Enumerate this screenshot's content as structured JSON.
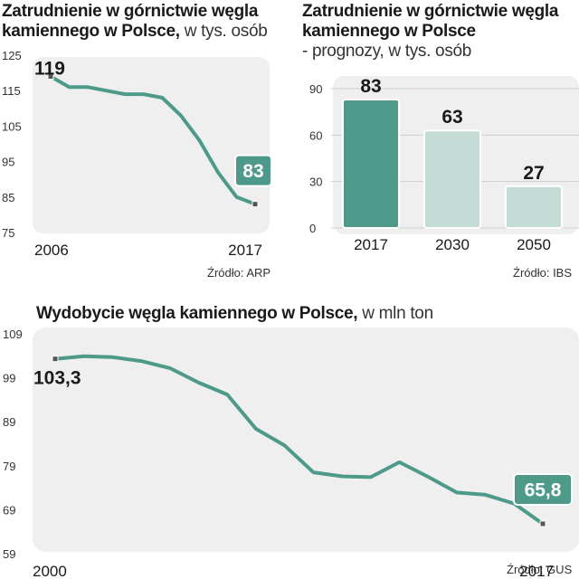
{
  "chart_data": [
    {
      "type": "line",
      "title": "Zatrudnienie w górnictwie węgla kamiennego w Polsce,",
      "unit": "w tys. osób",
      "source": "Źródło: ARP",
      "ylim": [
        75,
        125
      ],
      "yticks": [
        125,
        115,
        105,
        95,
        85,
        75
      ],
      "x_labels": [
        "2006",
        "2017"
      ],
      "x": [
        2006,
        2007,
        2008,
        2009,
        2010,
        2011,
        2012,
        2013,
        2014,
        2015,
        2016,
        2017
      ],
      "values": [
        119,
        116,
        116,
        115,
        114,
        114,
        113,
        108,
        101,
        92,
        85,
        83
      ],
      "start_label": "119",
      "end_label": "83",
      "color": "#4e9a8a"
    },
    {
      "type": "bar",
      "title": "Zatrudnienie w górnictwie węgla kamiennego w Polsce",
      "subtitle": "- prognozy, w tys. osób",
      "source": "Źródło: IBS",
      "ylim": [
        0,
        90
      ],
      "yticks": [
        90,
        60,
        30,
        0
      ],
      "categories": [
        "2017",
        "2030",
        "2050"
      ],
      "values": [
        83,
        63,
        27
      ],
      "value_labels": [
        "83",
        "63",
        "27"
      ],
      "colors": [
        "#4e9a8a",
        "#c3ddd6",
        "#c3ddd6"
      ]
    },
    {
      "type": "line",
      "title": "Wydobycie węgla kamiennego w Polsce,",
      "unit": "w mln ton",
      "source": "Źródło: GUS",
      "ylim": [
        59,
        109
      ],
      "yticks": [
        109,
        99,
        89,
        79,
        69,
        59
      ],
      "x_labels": [
        "2000",
        "2017"
      ],
      "x": [
        2000,
        2001,
        2002,
        2003,
        2004,
        2005,
        2006,
        2007,
        2008,
        2009,
        2010,
        2011,
        2012,
        2013,
        2014,
        2015,
        2016,
        2017
      ],
      "values": [
        103.3,
        103.9,
        103.7,
        102.8,
        101.2,
        97.9,
        95.2,
        87.4,
        83.6,
        77.5,
        76.6,
        76.4,
        79.8,
        76.5,
        72.9,
        72.4,
        70.4,
        65.8
      ],
      "start_label": "103,3",
      "end_label": "65,8",
      "color": "#4e9a8a"
    }
  ]
}
